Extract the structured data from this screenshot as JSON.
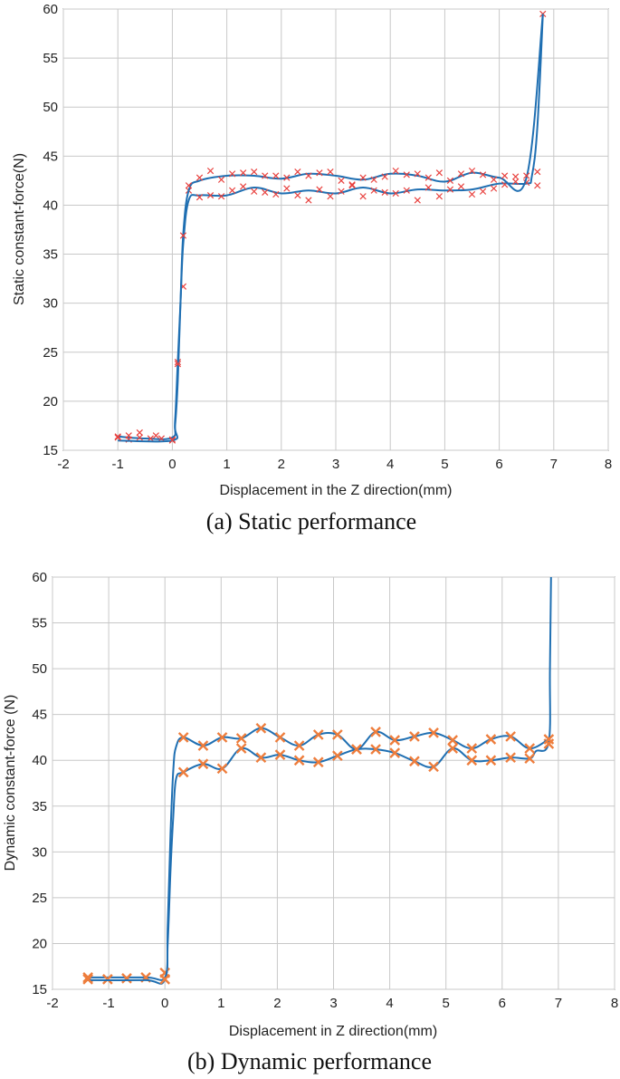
{
  "chart_data": [
    {
      "type": "scatter",
      "caption": "(a) Static performance",
      "xlabel": "Displacement in the Z direction(mm)",
      "ylabel": "Static constant-force(N)",
      "xlim": [
        -2,
        8
      ],
      "ylim": [
        15,
        60
      ],
      "xticks": [
        "-2",
        "-1",
        "0",
        "1",
        "2",
        "3",
        "4",
        "5",
        "6",
        "7",
        "8"
      ],
      "yticks": [
        "15",
        "20",
        "25",
        "30",
        "35",
        "40",
        "45",
        "50",
        "55",
        "60"
      ],
      "grid": true,
      "colors": {
        "line": "#1f6fb2",
        "marker": "#e8413e"
      },
      "marker": "x",
      "series": [
        {
          "curve": [
            [
              -1.0,
              16.4
            ],
            [
              -0.5,
              16.2
            ],
            [
              0.0,
              16.3
            ],
            [
              0.05,
              18.0
            ],
            [
              0.1,
              24.0
            ],
            [
              0.15,
              30.0
            ],
            [
              0.2,
              36.0
            ],
            [
              0.3,
              40.5
            ],
            [
              0.5,
              41.0
            ],
            [
              1.0,
              41.0
            ],
            [
              1.5,
              41.8
            ],
            [
              2.0,
              41.2
            ],
            [
              2.5,
              41.5
            ],
            [
              3.0,
              41.2
            ],
            [
              3.5,
              41.8
            ],
            [
              4.0,
              41.2
            ],
            [
              4.5,
              41.6
            ],
            [
              5.0,
              41.5
            ],
            [
              5.5,
              41.6
            ],
            [
              6.0,
              42.2
            ],
            [
              6.5,
              42.2
            ],
            [
              6.6,
              43.0
            ],
            [
              6.7,
              48.0
            ],
            [
              6.8,
              59.5
            ]
          ],
          "points": [
            [
              -1.0,
              16.4
            ],
            [
              -0.8,
              16.1
            ],
            [
              -0.6,
              16.8
            ],
            [
              -0.4,
              16.2
            ],
            [
              -0.2,
              16.2
            ],
            [
              0.0,
              16.1
            ],
            [
              0.1,
              24.0
            ],
            [
              0.2,
              31.7
            ],
            [
              0.3,
              41.5
            ],
            [
              0.5,
              40.8
            ],
            [
              0.7,
              41.0
            ],
            [
              0.9,
              40.9
            ],
            [
              1.1,
              41.5
            ],
            [
              1.3,
              41.9
            ],
            [
              1.5,
              41.4
            ],
            [
              1.7,
              41.3
            ],
            [
              1.9,
              41.1
            ],
            [
              2.1,
              41.7
            ],
            [
              2.3,
              41.0
            ],
            [
              2.5,
              40.5
            ],
            [
              2.7,
              41.6
            ],
            [
              2.9,
              40.9
            ],
            [
              3.1,
              41.4
            ],
            [
              3.3,
              42.0
            ],
            [
              3.5,
              40.9
            ],
            [
              3.7,
              41.5
            ],
            [
              3.9,
              41.3
            ],
            [
              4.1,
              41.2
            ],
            [
              4.3,
              41.5
            ],
            [
              4.5,
              40.5
            ],
            [
              4.7,
              41.8
            ],
            [
              4.9,
              40.9
            ],
            [
              5.1,
              41.6
            ],
            [
              5.3,
              41.9
            ],
            [
              5.5,
              41.1
            ],
            [
              5.7,
              41.4
            ],
            [
              5.9,
              41.7
            ],
            [
              6.1,
              42.1
            ],
            [
              6.3,
              42.4
            ],
            [
              6.5,
              42.3
            ],
            [
              6.7,
              42.0
            ],
            [
              6.8,
              59.5
            ]
          ]
        },
        {
          "curve": [
            [
              -1.0,
              16.0
            ],
            [
              0.0,
              16.0
            ],
            [
              0.05,
              17.5
            ],
            [
              0.1,
              22.0
            ],
            [
              0.15,
              30.0
            ],
            [
              0.2,
              37.0
            ],
            [
              0.3,
              41.5
            ],
            [
              0.5,
              42.5
            ],
            [
              1.0,
              43.0
            ],
            [
              1.5,
              43.0
            ],
            [
              2.0,
              42.7
            ],
            [
              2.5,
              43.2
            ],
            [
              3.0,
              43.0
            ],
            [
              3.5,
              42.6
            ],
            [
              4.0,
              43.2
            ],
            [
              4.5,
              43.0
            ],
            [
              5.0,
              42.4
            ],
            [
              5.5,
              43.3
            ],
            [
              6.0,
              42.8
            ],
            [
              6.5,
              42.8
            ],
            [
              6.8,
              59.5
            ]
          ],
          "points": [
            [
              -1.0,
              16.3
            ],
            [
              -0.8,
              16.5
            ],
            [
              -0.6,
              16.3
            ],
            [
              -0.3,
              16.5
            ],
            [
              0.0,
              16.0
            ],
            [
              0.1,
              23.8
            ],
            [
              0.2,
              36.9
            ],
            [
              0.3,
              42.0
            ],
            [
              0.5,
              42.8
            ],
            [
              0.7,
              43.5
            ],
            [
              0.9,
              42.6
            ],
            [
              1.1,
              43.2
            ],
            [
              1.3,
              43.3
            ],
            [
              1.5,
              43.4
            ],
            [
              1.7,
              43.0
            ],
            [
              1.9,
              43.0
            ],
            [
              2.1,
              42.8
            ],
            [
              2.3,
              43.4
            ],
            [
              2.5,
              43.0
            ],
            [
              2.7,
              43.3
            ],
            [
              2.9,
              43.4
            ],
            [
              3.1,
              42.5
            ],
            [
              3.3,
              42.1
            ],
            [
              3.5,
              42.8
            ],
            [
              3.7,
              42.6
            ],
            [
              3.9,
              42.9
            ],
            [
              4.1,
              43.5
            ],
            [
              4.3,
              43.1
            ],
            [
              4.5,
              43.2
            ],
            [
              4.7,
              42.8
            ],
            [
              4.9,
              43.3
            ],
            [
              5.1,
              42.5
            ],
            [
              5.3,
              43.2
            ],
            [
              5.5,
              43.5
            ],
            [
              5.7,
              43.1
            ],
            [
              5.9,
              42.6
            ],
            [
              6.1,
              43.0
            ],
            [
              6.3,
              42.9
            ],
            [
              6.5,
              43.0
            ],
            [
              6.7,
              43.4
            ]
          ]
        }
      ]
    },
    {
      "type": "scatter",
      "caption": "(b) Dynamic performance",
      "xlabel": "Displacement in Z direction(mm)",
      "ylabel": "Dynamic constant-force (N)",
      "xlim": [
        -2,
        8
      ],
      "ylim": [
        15,
        60
      ],
      "xticks": [
        "-2",
        "-1",
        "0",
        "1",
        "2",
        "3",
        "4",
        "5",
        "6",
        "7",
        "8"
      ],
      "yticks": [
        "15",
        "20",
        "25",
        "30",
        "35",
        "40",
        "45",
        "50",
        "55",
        "60"
      ],
      "grid": true,
      "colors": {
        "line": "#1f6fb2",
        "marker": "#ee7d3c"
      },
      "marker": "x",
      "series": [
        {
          "curve": [
            [
              -1.4,
              16.3
            ],
            [
              -0.35,
              16.3
            ],
            [
              0.0,
              16.3
            ],
            [
              0.05,
              20.0
            ],
            [
              0.1,
              28.0
            ],
            [
              0.15,
              34.0
            ],
            [
              0.2,
              38.0
            ],
            [
              0.33,
              38.7
            ],
            [
              0.68,
              39.6
            ],
            [
              1.02,
              39.1
            ],
            [
              1.36,
              41.3
            ],
            [
              1.71,
              40.3
            ],
            [
              2.05,
              40.6
            ],
            [
              2.39,
              40.0
            ],
            [
              2.73,
              39.8
            ],
            [
              3.07,
              40.5
            ],
            [
              3.41,
              41.2
            ],
            [
              3.75,
              41.2
            ],
            [
              4.09,
              40.8
            ],
            [
              4.44,
              39.9
            ],
            [
              4.78,
              39.3
            ],
            [
              5.12,
              41.3
            ],
            [
              5.46,
              40.0
            ],
            [
              5.8,
              40.0
            ],
            [
              6.15,
              40.3
            ],
            [
              6.49,
              40.2
            ],
            [
              6.6,
              41.0
            ],
            [
              6.83,
              42.0
            ],
            [
              6.85,
              50.0
            ],
            [
              6.87,
              60.0
            ]
          ],
          "points": [
            [
              -1.37,
              16.3
            ],
            [
              -1.02,
              16.1
            ],
            [
              -0.68,
              16.2
            ],
            [
              -0.34,
              16.3
            ],
            [
              0.0,
              16.8
            ],
            [
              0.33,
              38.7
            ],
            [
              0.68,
              39.6
            ],
            [
              1.02,
              39.1
            ],
            [
              1.36,
              41.3
            ],
            [
              1.71,
              40.3
            ],
            [
              2.05,
              40.6
            ],
            [
              2.39,
              40.0
            ],
            [
              2.73,
              39.8
            ],
            [
              3.07,
              40.5
            ],
            [
              3.41,
              41.2
            ],
            [
              3.75,
              41.2
            ],
            [
              4.09,
              40.8
            ],
            [
              4.44,
              39.9
            ],
            [
              4.78,
              39.3
            ],
            [
              5.12,
              41.3
            ],
            [
              5.46,
              40.0
            ],
            [
              5.8,
              40.0
            ],
            [
              6.15,
              40.3
            ],
            [
              6.49,
              40.2
            ],
            [
              6.83,
              41.8
            ]
          ]
        },
        {
          "curve": [
            [
              -1.4,
              16.0
            ],
            [
              -0.35,
              16.0
            ],
            [
              0.0,
              16.1
            ],
            [
              0.05,
              22.0
            ],
            [
              0.1,
              32.0
            ],
            [
              0.15,
              39.0
            ],
            [
              0.2,
              41.5
            ],
            [
              0.33,
              42.5
            ],
            [
              0.68,
              41.6
            ],
            [
              1.02,
              42.5
            ],
            [
              1.36,
              42.4
            ],
            [
              1.71,
              43.5
            ],
            [
              2.05,
              42.5
            ],
            [
              2.39,
              41.6
            ],
            [
              2.73,
              42.8
            ],
            [
              3.07,
              42.8
            ],
            [
              3.41,
              41.2
            ],
            [
              3.75,
              43.1
            ],
            [
              4.09,
              42.2
            ],
            [
              4.44,
              42.6
            ],
            [
              4.78,
              43.0
            ],
            [
              5.12,
              42.2
            ],
            [
              5.46,
              41.3
            ],
            [
              5.8,
              42.3
            ],
            [
              6.15,
              42.6
            ],
            [
              6.49,
              41.3
            ],
            [
              6.83,
              42.3
            ]
          ],
          "points": [
            [
              -1.37,
              16.1
            ],
            [
              0.0,
              16.1
            ],
            [
              0.33,
              42.5
            ],
            [
              0.68,
              41.6
            ],
            [
              1.02,
              42.5
            ],
            [
              1.36,
              42.4
            ],
            [
              1.71,
              43.5
            ],
            [
              2.05,
              42.5
            ],
            [
              2.39,
              41.6
            ],
            [
              2.73,
              42.8
            ],
            [
              3.07,
              42.8
            ],
            [
              3.41,
              41.2
            ],
            [
              3.75,
              43.1
            ],
            [
              4.09,
              42.2
            ],
            [
              4.44,
              42.6
            ],
            [
              4.78,
              43.0
            ],
            [
              5.12,
              42.2
            ],
            [
              5.46,
              41.3
            ],
            [
              5.8,
              42.3
            ],
            [
              6.15,
              42.6
            ],
            [
              6.49,
              41.3
            ],
            [
              6.83,
              42.3
            ]
          ]
        }
      ]
    }
  ]
}
